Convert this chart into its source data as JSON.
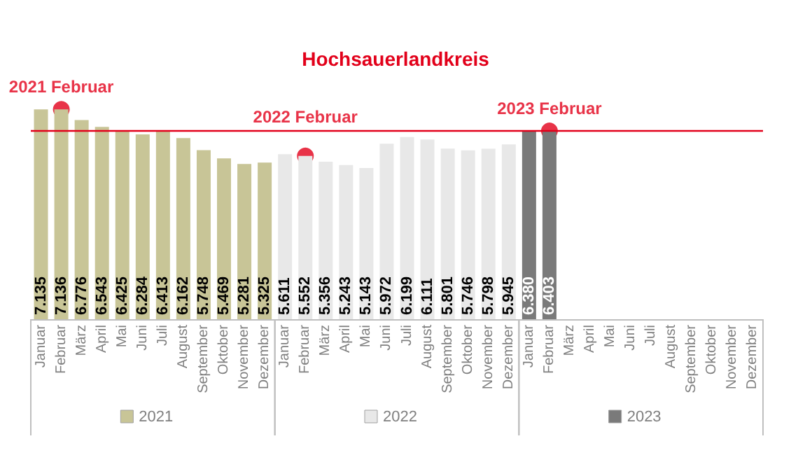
{
  "chart_data": {
    "type": "bar",
    "title": "Hochsauerlandkreis",
    "categories": [
      "Januar",
      "Februar",
      "März",
      "April",
      "Mai",
      "Juni",
      "Juli",
      "August",
      "September",
      "Oktober",
      "November",
      "Dezember",
      "Januar",
      "Februar",
      "März",
      "April",
      "Mai",
      "Juni",
      "Juli",
      "August",
      "September",
      "Oktober",
      "November",
      "Dezember",
      "Januar",
      "Februar",
      "März",
      "April",
      "Mai",
      "Juni",
      "Juli",
      "August",
      "September",
      "Oktober",
      "November",
      "Dezember"
    ],
    "stacked": true,
    "data_labels": true,
    "legend": "bottom",
    "grid": false,
    "series": [
      {
        "name": "2021",
        "color": "#c8c597",
        "values": [
          7135,
          7136,
          6776,
          6543,
          6425,
          6284,
          6413,
          6162,
          5748,
          5469,
          5281,
          5325,
          null,
          null,
          null,
          null,
          null,
          null,
          null,
          null,
          null,
          null,
          null,
          null,
          null,
          null,
          null,
          null,
          null,
          null,
          null,
          null,
          null,
          null,
          null,
          null
        ],
        "value_labels": [
          "7.135",
          "7.136",
          "6.776",
          "6.543",
          "6.425",
          "6.284",
          "6.413",
          "6.162",
          "5.748",
          "5.469",
          "5.281",
          "5.325",
          null,
          null,
          null,
          null,
          null,
          null,
          null,
          null,
          null,
          null,
          null,
          null,
          null,
          null,
          null,
          null,
          null,
          null,
          null,
          null,
          null,
          null,
          null,
          null
        ]
      },
      {
        "name": "2022",
        "color": "#e8e8e8",
        "values": [
          null,
          null,
          null,
          null,
          null,
          null,
          null,
          null,
          null,
          null,
          null,
          null,
          5611,
          5552,
          5356,
          5243,
          5143,
          5972,
          6199,
          6111,
          5801,
          5746,
          5798,
          5945,
          null,
          null,
          null,
          null,
          null,
          null,
          null,
          null,
          null,
          null,
          null,
          null
        ],
        "value_labels": [
          null,
          null,
          null,
          null,
          null,
          null,
          null,
          null,
          null,
          null,
          null,
          null,
          "5.611",
          "5.552",
          "5.356",
          "5.243",
          "5.143",
          "5.972",
          "6.199",
          "6.111",
          "5.801",
          "5.746",
          "5.798",
          "5.945",
          null,
          null,
          null,
          null,
          null,
          null,
          null,
          null,
          null,
          null,
          null,
          null
        ]
      },
      {
        "name": "2023",
        "color": "#7a7a7a",
        "values": [
          null,
          null,
          null,
          null,
          null,
          null,
          null,
          null,
          null,
          null,
          null,
          null,
          null,
          null,
          null,
          null,
          null,
          null,
          null,
          null,
          null,
          null,
          null,
          null,
          6380,
          6403,
          null,
          null,
          null,
          null,
          null,
          null,
          null,
          null,
          null,
          null
        ],
        "value_labels": [
          null,
          null,
          null,
          null,
          null,
          null,
          null,
          null,
          null,
          null,
          null,
          null,
          null,
          null,
          null,
          null,
          null,
          null,
          null,
          null,
          null,
          null,
          null,
          null,
          "6.380",
          "6.403",
          null,
          null,
          null,
          null,
          null,
          null,
          null,
          null,
          null,
          null
        ]
      },
      {
        "type": "scatter",
        "color": "#e2001a",
        "marker": "circle",
        "values": [
          null,
          7136,
          null,
          null,
          null,
          null,
          null,
          null,
          null,
          null,
          null,
          null,
          null,
          5552,
          null,
          null,
          null,
          null,
          null,
          null,
          null,
          null,
          null,
          null,
          null,
          6403,
          null,
          null,
          null,
          null,
          null,
          null,
          null,
          null,
          null,
          null
        ],
        "value_labels": [
          null,
          "2021 Februar",
          null,
          null,
          null,
          null,
          null,
          null,
          null,
          null,
          null,
          null,
          null,
          "2022 Februar",
          null,
          null,
          null,
          null,
          null,
          null,
          null,
          null,
          null,
          null,
          null,
          "2023 Februar",
          null,
          null,
          null,
          null,
          null,
          null,
          null,
          null,
          null,
          null
        ]
      }
    ],
    "ref_lines": [
      {
        "axis": "y",
        "value": 6403,
        "color": "#e2001a"
      }
    ]
  }
}
